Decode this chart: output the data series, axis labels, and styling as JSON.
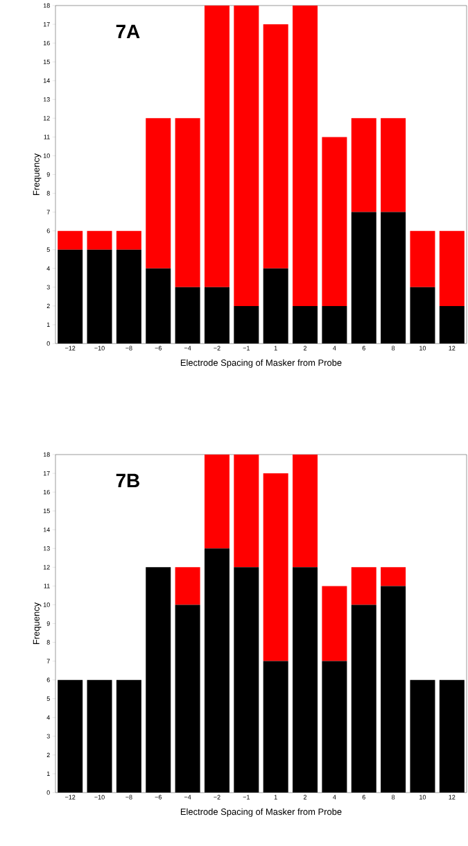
{
  "chart_data": [
    {
      "type": "bar",
      "stacked": true,
      "title": "7A",
      "xlabel": "Electrode Spacing of Masker from Probe",
      "ylabel": "Frequency",
      "categories": [
        "−12",
        "−10",
        "−8",
        "−6",
        "−4",
        "−2",
        "−1",
        "1",
        "2",
        "4",
        "6",
        "8",
        "10",
        "12"
      ],
      "series": [
        {
          "color": "#000000",
          "values": [
            5,
            5,
            5,
            4,
            3,
            3,
            2,
            4,
            2,
            2,
            7,
            7,
            3,
            2
          ]
        },
        {
          "color": "#ff0000",
          "values": [
            1,
            1,
            1,
            8,
            9,
            15,
            16,
            13,
            16,
            9,
            5,
            5,
            3,
            4
          ]
        }
      ],
      "ylim": [
        0,
        18
      ],
      "yticks": [
        0,
        1,
        2,
        3,
        4,
        5,
        6,
        7,
        8,
        9,
        10,
        11,
        12,
        13,
        14,
        15,
        16,
        17,
        18
      ]
    },
    {
      "type": "bar",
      "stacked": true,
      "title": "7B",
      "xlabel": "Electrode Spacing of Masker from Probe",
      "ylabel": "Frequency",
      "categories": [
        "−12",
        "−10",
        "−8",
        "−6",
        "−4",
        "−2",
        "−1",
        "1",
        "2",
        "4",
        "6",
        "8",
        "10",
        "12"
      ],
      "series": [
        {
          "color": "#000000",
          "values": [
            6,
            6,
            6,
            12,
            10,
            13,
            12,
            7,
            12,
            7,
            10,
            11,
            6,
            6
          ]
        },
        {
          "color": "#ff0000",
          "values": [
            0,
            0,
            0,
            0,
            2,
            5,
            6,
            10,
            6,
            4,
            2,
            1,
            0,
            0
          ]
        }
      ],
      "ylim": [
        0,
        18
      ],
      "yticks": [
        0,
        1,
        2,
        3,
        4,
        5,
        6,
        7,
        8,
        9,
        10,
        11,
        12,
        13,
        14,
        15,
        16,
        17,
        18
      ]
    }
  ]
}
